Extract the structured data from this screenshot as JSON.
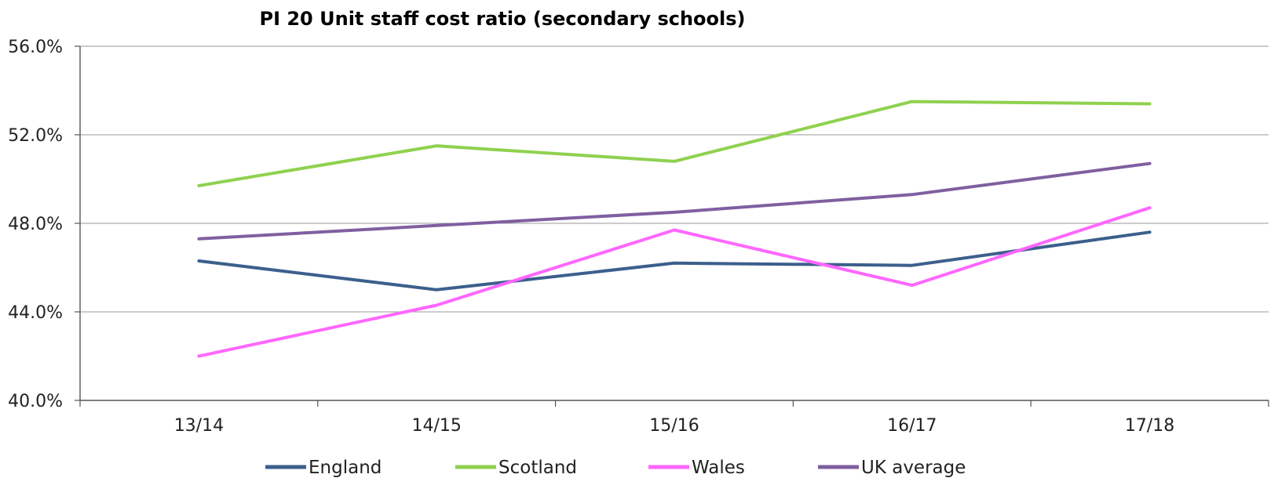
{
  "chart_data": {
    "type": "line",
    "title": "PI 20 Unit staff cost ratio (secondary schools)",
    "xlabel": "",
    "ylabel": "",
    "categories": [
      "13/14",
      "14/15",
      "15/16",
      "16/17",
      "17/18"
    ],
    "ylim": [
      40.0,
      56.0
    ],
    "yticks": [
      "40.0%",
      "44.0%",
      "48.0%",
      "52.0%",
      "56.0%"
    ],
    "ytick_values": [
      40,
      44,
      48,
      52,
      56
    ],
    "grid": true,
    "legend_position": "bottom",
    "series": [
      {
        "name": "England",
        "color": "#3c5f8c",
        "values": [
          46.3,
          45.0,
          46.2,
          46.1,
          47.6
        ]
      },
      {
        "name": "Scotland",
        "color": "#8fd14f",
        "values": [
          49.7,
          51.5,
          50.8,
          53.5,
          53.4
        ]
      },
      {
        "name": "Wales",
        "color": "#ff66ff",
        "values": [
          42.0,
          44.3,
          47.7,
          45.2,
          48.7
        ]
      },
      {
        "name": "UK average",
        "color": "#7f5fa0",
        "values": [
          47.3,
          47.9,
          48.5,
          49.3,
          50.7
        ]
      }
    ]
  }
}
